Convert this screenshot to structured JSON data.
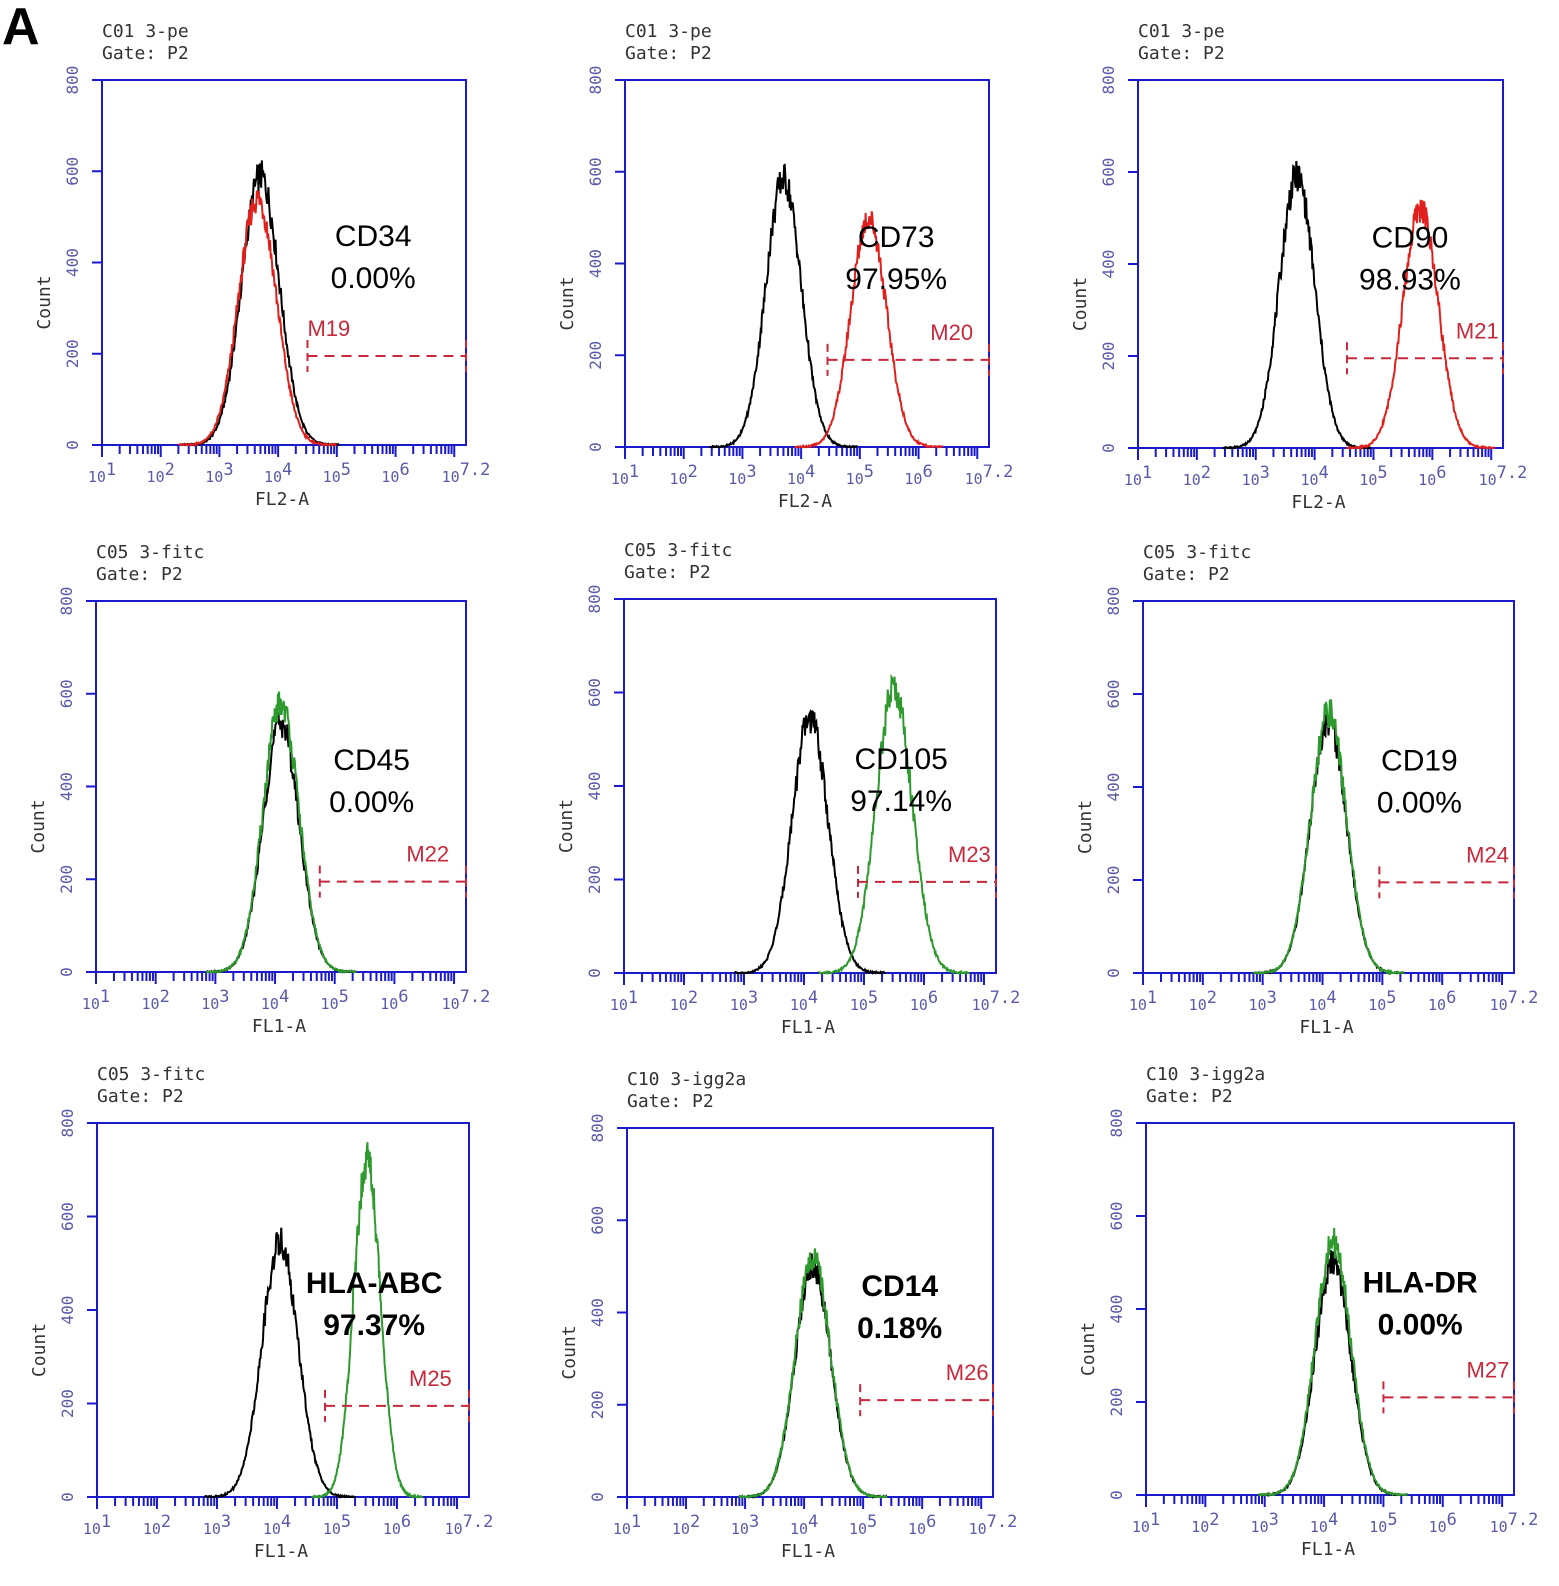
{
  "panel_letter": "A",
  "colors": {
    "axis": "#1a1acc",
    "tick_label": "#5a5aa8",
    "header_text": "#333333",
    "control": "#000000",
    "pe_sample": "#e0201c",
    "fitc_sample": "#2e9a2e",
    "marker": "#c8283c",
    "label": "#000000"
  },
  "chart_data": [
    {
      "type": "line",
      "header": [
        "C01 3-pe",
        "Gate: P2"
      ],
      "xlabel": "FL2-A",
      "ylabel": "Count",
      "x_scale": "log",
      "xlim": [
        10,
        15848932
      ],
      "ylim": [
        0,
        800
      ],
      "x_ticks": [
        {
          "base": "10",
          "exp": "1"
        },
        {
          "base": "10",
          "exp": "2"
        },
        {
          "base": "10",
          "exp": "3"
        },
        {
          "base": "10",
          "exp": "4"
        },
        {
          "base": "10",
          "exp": "5"
        },
        {
          "base": "10",
          "exp": "6"
        },
        {
          "base": "10",
          "exp": "7.2"
        }
      ],
      "y_ticks": [
        "0",
        "200",
        "400",
        "600",
        "800"
      ],
      "sample_color": "pe",
      "control": {
        "peak_x": 5012,
        "peak_y": 590,
        "width_decades": 0.32
      },
      "sample": {
        "peak_x": 4467,
        "peak_y": 540,
        "width_decades": 0.32
      },
      "marker": {
        "name": "M19",
        "x_start": 31623,
        "x_end": 15848932,
        "y": 195
      },
      "marker_label_x": 31623,
      "label": {
        "name": "CD34",
        "value": "0.00%"
      }
    },
    {
      "type": "line",
      "header": [
        "C01 3-pe",
        "Gate: P2"
      ],
      "xlabel": "FL2-A",
      "ylabel": "Count",
      "x_scale": "log",
      "xlim": [
        10,
        15848932
      ],
      "ylim": [
        0,
        800
      ],
      "x_ticks": [
        {
          "base": "10",
          "exp": "1"
        },
        {
          "base": "10",
          "exp": "2"
        },
        {
          "base": "10",
          "exp": "3"
        },
        {
          "base": "10",
          "exp": "4"
        },
        {
          "base": "10",
          "exp": "5"
        },
        {
          "base": "10",
          "exp": "6"
        },
        {
          "base": "10",
          "exp": "7.2"
        }
      ],
      "y_ticks": [
        "0",
        "200",
        "400",
        "600",
        "800"
      ],
      "sample_color": "pe",
      "control": {
        "peak_x": 5012,
        "peak_y": 585,
        "width_decades": 0.3
      },
      "sample": {
        "peak_x": 141254,
        "peak_y": 500,
        "width_decades": 0.3
      },
      "marker": {
        "name": "M20",
        "x_start": 28184,
        "x_end": 15848932,
        "y": 190
      },
      "marker_label_x": 1584893,
      "label": {
        "name": "CD73",
        "value": "97.95%"
      }
    },
    {
      "type": "line",
      "header": [
        "C01 3-pe",
        "Gate: P2"
      ],
      "xlabel": "FL2-A",
      "ylabel": "Count",
      "x_scale": "log",
      "xlim": [
        10,
        15848932
      ],
      "ylim": [
        0,
        800
      ],
      "x_ticks": [
        {
          "base": "10",
          "exp": "1"
        },
        {
          "base": "10",
          "exp": "2"
        },
        {
          "base": "10",
          "exp": "3"
        },
        {
          "base": "10",
          "exp": "4"
        },
        {
          "base": "10",
          "exp": "5"
        },
        {
          "base": "10",
          "exp": "6"
        },
        {
          "base": "10",
          "exp": "7.2"
        }
      ],
      "y_ticks": [
        "0",
        "200",
        "400",
        "600",
        "800"
      ],
      "sample_color": "pe",
      "control": {
        "peak_x": 5012,
        "peak_y": 590,
        "width_decades": 0.3
      },
      "sample": {
        "peak_x": 630957,
        "peak_y": 520,
        "width_decades": 0.3
      },
      "marker": {
        "name": "M21",
        "x_start": 35481,
        "x_end": 15848932,
        "y": 195
      },
      "marker_label_x": 2511886,
      "label": {
        "name": "CD90",
        "value": "98.93%"
      }
    },
    {
      "type": "line",
      "header": [
        "C05 3-fitc",
        "Gate: P2"
      ],
      "xlabel": "FL1-A",
      "ylabel": "Count",
      "x_scale": "log",
      "xlim": [
        10,
        15848932
      ],
      "ylim": [
        0,
        800
      ],
      "x_ticks": [
        {
          "base": "10",
          "exp": "1"
        },
        {
          "base": "10",
          "exp": "2"
        },
        {
          "base": "10",
          "exp": "3"
        },
        {
          "base": "10",
          "exp": "4"
        },
        {
          "base": "10",
          "exp": "5"
        },
        {
          "base": "10",
          "exp": "6"
        },
        {
          "base": "10",
          "exp": "7.2"
        }
      ],
      "y_ticks": [
        "0",
        "200",
        "400",
        "600",
        "800"
      ],
      "sample_color": "fitc",
      "control": {
        "peak_x": 12589,
        "peak_y": 540,
        "width_decades": 0.3
      },
      "sample": {
        "peak_x": 12589,
        "peak_y": 580,
        "width_decades": 0.3
      },
      "marker": {
        "name": "M22",
        "x_start": 56234,
        "x_end": 15848932,
        "y": 195
      },
      "marker_label_x": 1584893,
      "label": {
        "name": "CD45",
        "value": "0.00%"
      }
    },
    {
      "type": "line",
      "header": [
        "C05 3-fitc",
        "Gate: P2"
      ],
      "xlabel": "FL1-A",
      "ylabel": "Count",
      "x_scale": "log",
      "xlim": [
        10,
        15848932
      ],
      "ylim": [
        0,
        800
      ],
      "x_ticks": [
        {
          "base": "10",
          "exp": "1"
        },
        {
          "base": "10",
          "exp": "2"
        },
        {
          "base": "10",
          "exp": "3"
        },
        {
          "base": "10",
          "exp": "4"
        },
        {
          "base": "10",
          "exp": "5"
        },
        {
          "base": "10",
          "exp": "6"
        },
        {
          "base": "10",
          "exp": "7.2"
        }
      ],
      "y_ticks": [
        "0",
        "200",
        "400",
        "600",
        "800"
      ],
      "sample_color": "fitc",
      "control": {
        "peak_x": 12589,
        "peak_y": 545,
        "width_decades": 0.3
      },
      "sample": {
        "peak_x": 316228,
        "peak_y": 610,
        "width_decades": 0.3
      },
      "marker": {
        "name": "M23",
        "x_start": 79433,
        "x_end": 15848932,
        "y": 195
      },
      "marker_label_x": 2511886,
      "label": {
        "name": "CD105",
        "value": "97.14%"
      }
    },
    {
      "type": "line",
      "header": [
        "C05 3-fitc",
        "Gate: P2"
      ],
      "xlabel": "FL1-A",
      "ylabel": "Count",
      "x_scale": "log",
      "xlim": [
        10,
        15848932
      ],
      "ylim": [
        0,
        800
      ],
      "x_ticks": [
        {
          "base": "10",
          "exp": "1"
        },
        {
          "base": "10",
          "exp": "2"
        },
        {
          "base": "10",
          "exp": "3"
        },
        {
          "base": "10",
          "exp": "4"
        },
        {
          "base": "10",
          "exp": "5"
        },
        {
          "base": "10",
          "exp": "6"
        },
        {
          "base": "10",
          "exp": "7.2"
        }
      ],
      "y_ticks": [
        "0",
        "200",
        "400",
        "600",
        "800"
      ],
      "sample_color": "fitc",
      "control": {
        "peak_x": 12589,
        "peak_y": 545,
        "width_decades": 0.3
      },
      "sample": {
        "peak_x": 12589,
        "peak_y": 560,
        "width_decades": 0.3
      },
      "marker": {
        "name": "M24",
        "x_start": 89125,
        "x_end": 15848932,
        "y": 195
      },
      "marker_label_x": 2511886,
      "label": {
        "name": "CD19",
        "value": "0.00%"
      }
    },
    {
      "type": "line",
      "header": [
        "C05 3-fitc",
        "Gate: P2"
      ],
      "xlabel": "FL1-A",
      "ylabel": "Count",
      "x_scale": "log",
      "xlim": [
        10,
        15848932
      ],
      "ylim": [
        0,
        800
      ],
      "x_ticks": [
        {
          "base": "10",
          "exp": "1"
        },
        {
          "base": "10",
          "exp": "2"
        },
        {
          "base": "10",
          "exp": "3"
        },
        {
          "base": "10",
          "exp": "4"
        },
        {
          "base": "10",
          "exp": "5"
        },
        {
          "base": "10",
          "exp": "6"
        },
        {
          "base": "10",
          "exp": "7.2"
        }
      ],
      "y_ticks": [
        "0",
        "200",
        "400",
        "600",
        "800"
      ],
      "sample_color": "fitc",
      "control": {
        "peak_x": 11220,
        "peak_y": 545,
        "width_decades": 0.3
      },
      "sample": {
        "peak_x": 316228,
        "peak_y": 725,
        "width_decades": 0.22
      },
      "marker": {
        "name": "M25",
        "x_start": 63096,
        "x_end": 15848932,
        "y": 195
      },
      "marker_label_x": 1584893,
      "label": {
        "name": "HLA-ABC",
        "value": "97.37%"
      }
    },
    {
      "type": "line",
      "header": [
        "C10 3-igg2a",
        "Gate: P2"
      ],
      "xlabel": "FL1-A",
      "ylabel": "Count",
      "x_scale": "log",
      "xlim": [
        10,
        15848932
      ],
      "ylim": [
        0,
        800
      ],
      "x_ticks": [
        {
          "base": "10",
          "exp": "1"
        },
        {
          "base": "10",
          "exp": "2"
        },
        {
          "base": "10",
          "exp": "3"
        },
        {
          "base": "10",
          "exp": "4"
        },
        {
          "base": "10",
          "exp": "5"
        },
        {
          "base": "10",
          "exp": "6"
        },
        {
          "base": "10",
          "exp": "7.2"
        }
      ],
      "y_ticks": [
        "0",
        "200",
        "400",
        "600",
        "800"
      ],
      "sample_color": "fitc",
      "control": {
        "peak_x": 14125,
        "peak_y": 500,
        "width_decades": 0.3
      },
      "sample": {
        "peak_x": 14125,
        "peak_y": 520,
        "width_decades": 0.3
      },
      "marker": {
        "name": "M26",
        "x_start": 89125,
        "x_end": 15848932,
        "y": 210
      },
      "marker_label_x": 2511886,
      "label": {
        "name": "CD14",
        "value": "0.18%"
      }
    },
    {
      "type": "line",
      "header": [
        "C10 3-igg2a",
        "Gate: P2"
      ],
      "xlabel": "FL1-A",
      "ylabel": "Count",
      "x_scale": "log",
      "xlim": [
        10,
        15848932
      ],
      "ylim": [
        0,
        800
      ],
      "x_ticks": [
        {
          "base": "10",
          "exp": "1"
        },
        {
          "base": "10",
          "exp": "2"
        },
        {
          "base": "10",
          "exp": "3"
        },
        {
          "base": "10",
          "exp": "4"
        },
        {
          "base": "10",
          "exp": "5"
        },
        {
          "base": "10",
          "exp": "6"
        },
        {
          "base": "10",
          "exp": "7.2"
        }
      ],
      "y_ticks": [
        "0",
        "200",
        "400",
        "600",
        "800"
      ],
      "sample_color": "fitc",
      "control": {
        "peak_x": 14125,
        "peak_y": 500,
        "width_decades": 0.3
      },
      "sample": {
        "peak_x": 14125,
        "peak_y": 545,
        "width_decades": 0.3
      },
      "marker": {
        "name": "M27",
        "x_start": 100000,
        "x_end": 15848932,
        "y": 210
      },
      "marker_label_x": 2511886,
      "label": {
        "name": "HLA-DR",
        "value": "0.00%"
      }
    }
  ]
}
